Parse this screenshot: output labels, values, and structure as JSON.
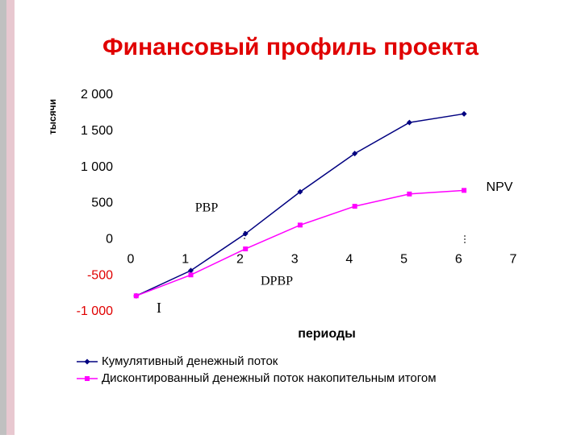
{
  "chart_data": {
    "type": "line",
    "title": "Финансовый профиль проекта",
    "y_label": "тысячи",
    "x_label": "периоды",
    "x": [
      0.1,
      1.1,
      2.1,
      3.1,
      4.1,
      5.1,
      6.1
    ],
    "series": [
      {
        "name": "Кумулятивный денежный поток",
        "color": "#000080",
        "marker": "diamond",
        "values": [
          -780,
          -430,
          80,
          660,
          1190,
          1620,
          1740
        ]
      },
      {
        "name": "Дисконтированный денежный поток накопительным итогом",
        "color": "#ff00ff",
        "marker": "square",
        "values": [
          -780,
          -490,
          -130,
          200,
          460,
          630,
          680
        ]
      }
    ],
    "xlim": [
      0,
      7
    ],
    "xticks": [
      0,
      1,
      2,
      3,
      4,
      5,
      6,
      7
    ],
    "ylim": [
      -1000,
      2000
    ],
    "yticks": [
      {
        "value": -1000,
        "label": "-1 000"
      },
      -500,
      0,
      500,
      {
        "value": 1000,
        "label": "1 000"
      },
      {
        "value": 1500,
        "label": "1 500"
      },
      {
        "value": 2000,
        "label": "2 000"
      }
    ],
    "negative_tick_color": "#e00000",
    "annotations": [
      "NPV",
      "PBP",
      "DPBP",
      "I"
    ]
  }
}
